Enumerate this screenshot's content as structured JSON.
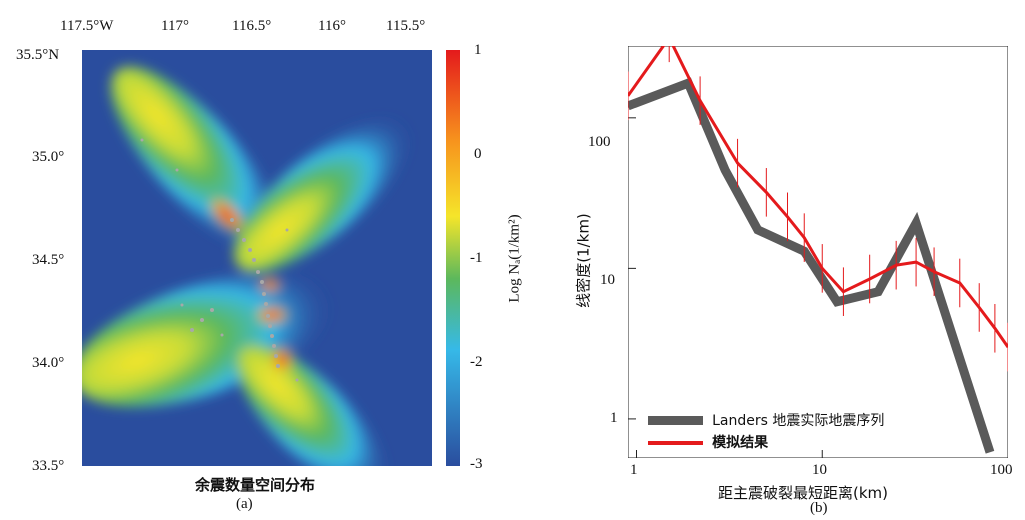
{
  "chart_data": [
    {
      "type": "heatmap",
      "id": "a",
      "title": "余震数量空间分布",
      "panel_label": "(a)",
      "x_ticks": [
        "117.5°W",
        "117°",
        "116.5°",
        "116°",
        "115.5°"
      ],
      "y_ticks": [
        "35.5°N",
        "35.0°",
        "34.5°",
        "34.0°",
        "33.5°"
      ],
      "xlim": [
        -117.6,
        -115.4
      ],
      "ylim": [
        33.5,
        35.5
      ],
      "colorbar": {
        "label": "Log Nₐ(1/km²)",
        "range": [
          -3,
          1
        ],
        "ticks": [
          "1",
          "0",
          "-1",
          "-2",
          "-3"
        ],
        "colors": [
          "#e41a1c",
          "#f7941d",
          "#f5e52a",
          "#5cb85c",
          "#36b9e8",
          "#2a4d9e"
        ]
      },
      "background_color": "#2a4d9e"
    },
    {
      "type": "line",
      "id": "b",
      "panel_label": "(b)",
      "xlabel": "距主震破裂最短距离(km)",
      "ylabel": "线密度(1/km)",
      "x_scale": "log",
      "y_scale": "log",
      "xlim": [
        0.9,
        100
      ],
      "ylim": [
        0.55,
        300
      ],
      "x_ticks": [
        "1",
        "10",
        "100"
      ],
      "y_ticks": [
        "100",
        "10",
        "1"
      ],
      "legend_position": "bottom-left",
      "series": [
        {
          "name": "Landers 地震实际地震序列",
          "color": "#5a5a5a",
          "x": [
            0.9,
            1.9,
            3,
            4.5,
            8,
            12,
            20,
            32,
            80
          ],
          "y": [
            120,
            170,
            45,
            18,
            13,
            6,
            7,
            20,
            0.6
          ]
        },
        {
          "name": "模拟结果",
          "color": "#e41a1c",
          "x": [
            0.9,
            1.5,
            2.2,
            3.5,
            5,
            6.5,
            8,
            10,
            13,
            18,
            25,
            32,
            40,
            55,
            70,
            85,
            100
          ],
          "y": [
            140,
            340,
            130,
            50,
            32,
            22,
            16,
            10,
            7,
            8.5,
            10.5,
            11,
            9.5,
            8,
            5.5,
            4,
            3
          ]
        }
      ]
    }
  ]
}
